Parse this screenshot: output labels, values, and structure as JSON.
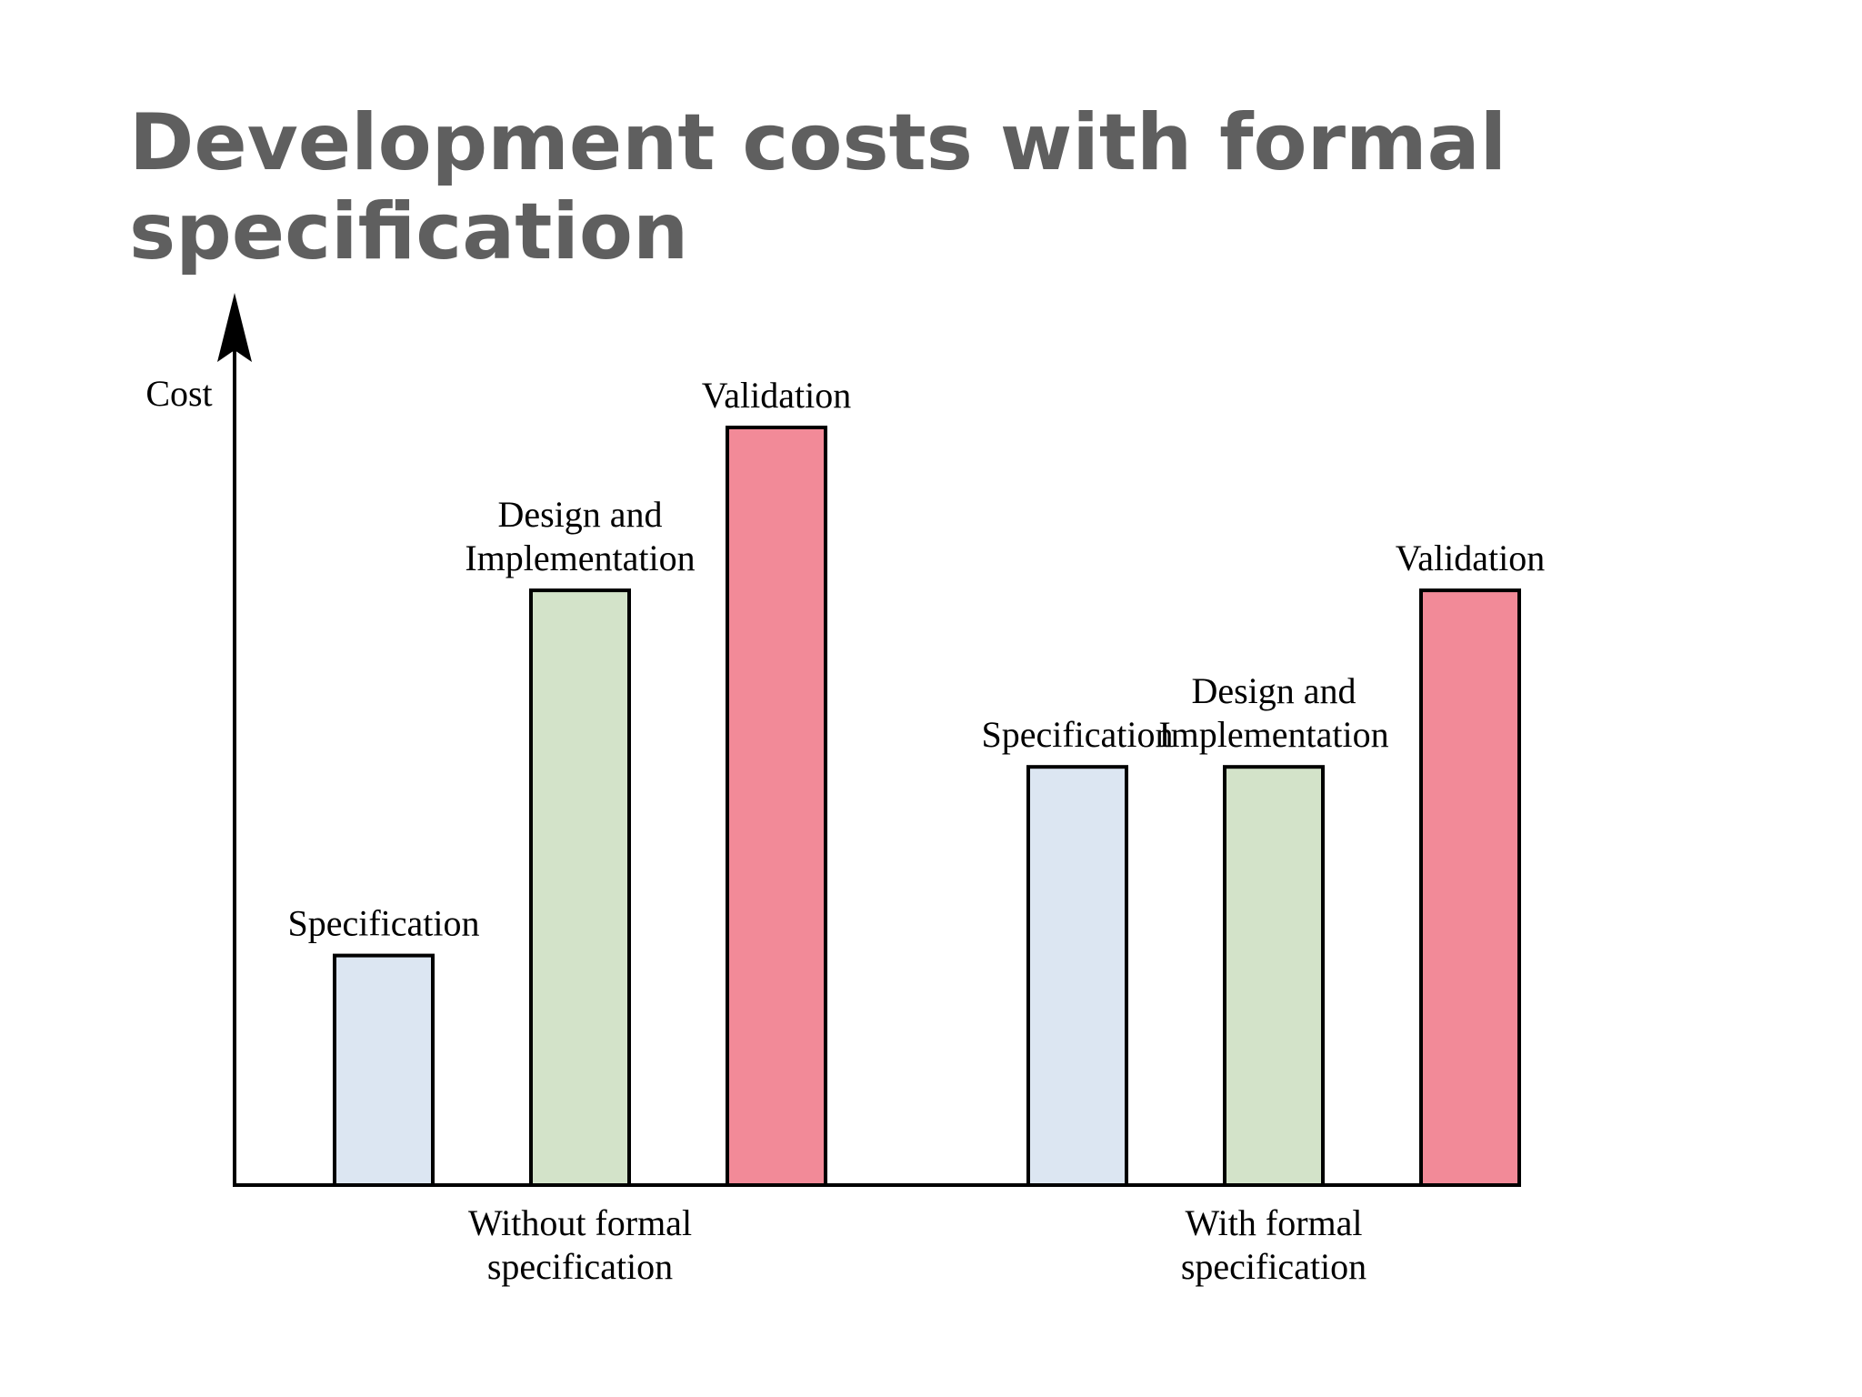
{
  "chart_data": {
    "type": "bar",
    "title_lines": [
      "Development costs with formal",
      "specification"
    ],
    "ylabel": "Cost",
    "xlabel": "",
    "ylim": [
      0,
      100
    ],
    "groups": [
      {
        "label_lines": [
          "Without formal",
          "specification"
        ],
        "bars": [
          {
            "label_lines": [
              "Specification"
            ],
            "value": 30.3,
            "color": "#dce6f2"
          },
          {
            "label_lines": [
              "Design and",
              "Implementation"
            ],
            "value": 78.5,
            "color": "#d3e3c9"
          },
          {
            "label_lines": [
              "Validation"
            ],
            "value": 100,
            "color": "#f28a98"
          }
        ]
      },
      {
        "label_lines": [
          "With formal",
          "specification"
        ],
        "bars": [
          {
            "label_lines": [
              "Specification"
            ],
            "value": 55.2,
            "color": "#dce6f2"
          },
          {
            "label_lines": [
              "Design and",
              "Implementation"
            ],
            "value": 55.2,
            "color": "#d3e3c9"
          },
          {
            "label_lines": [
              "Validation"
            ],
            "value": 78.5,
            "color": "#f28a98"
          }
        ]
      }
    ],
    "grid": false,
    "legend": "none"
  }
}
